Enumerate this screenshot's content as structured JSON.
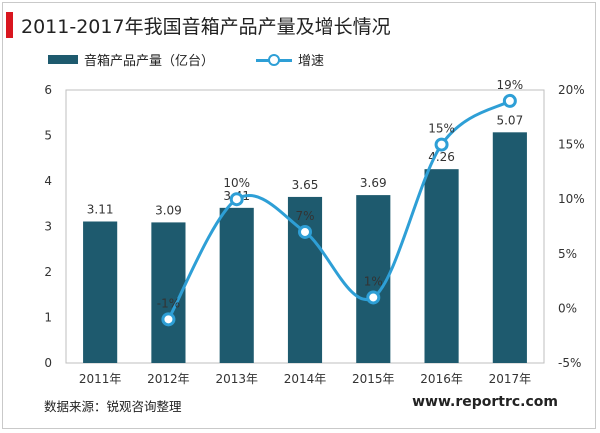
{
  "header": {
    "title": "2011-2017年我国音箱产品产量及增长情况"
  },
  "legend": {
    "bar_label": "音箱产品产量（亿台）",
    "line_label": "增速"
  },
  "footer": {
    "source": "数据来源：锐观咨询整理",
    "website": "www.reportrc.com"
  },
  "colors": {
    "bar": "#1e5a6e",
    "line": "#2e9fd6",
    "accent": "#d9161f"
  },
  "chart_data": {
    "type": "bar",
    "categories": [
      "2011年",
      "2012年",
      "2013年",
      "2014年",
      "2015年",
      "2016年",
      "2017年"
    ],
    "series": [
      {
        "name": "音箱产品产量（亿台）",
        "type": "bar",
        "axis": "left",
        "values": [
          3.11,
          3.09,
          3.41,
          3.65,
          3.69,
          4.26,
          5.07
        ],
        "labels": [
          "3.11",
          "3.09",
          "3.41",
          "3.65",
          "3.69",
          "4.26",
          "5.07"
        ]
      },
      {
        "name": "增速",
        "type": "line",
        "smooth": true,
        "axis": "right",
        "values": [
          null,
          -1,
          10,
          7,
          1,
          15,
          19
        ],
        "labels": [
          "",
          "-1%",
          "10%",
          "7%",
          "1%",
          "15%",
          "19%"
        ]
      }
    ],
    "y_left": {
      "ylim": [
        0,
        6
      ],
      "ticks": [
        "0",
        "1",
        "2",
        "3",
        "4",
        "5",
        "6"
      ]
    },
    "y_right": {
      "ylim": [
        -5,
        20
      ],
      "ticks": [
        "-5%",
        "0%",
        "5%",
        "10%",
        "15%",
        "20%"
      ]
    },
    "legend_position": "top",
    "grid": false
  }
}
